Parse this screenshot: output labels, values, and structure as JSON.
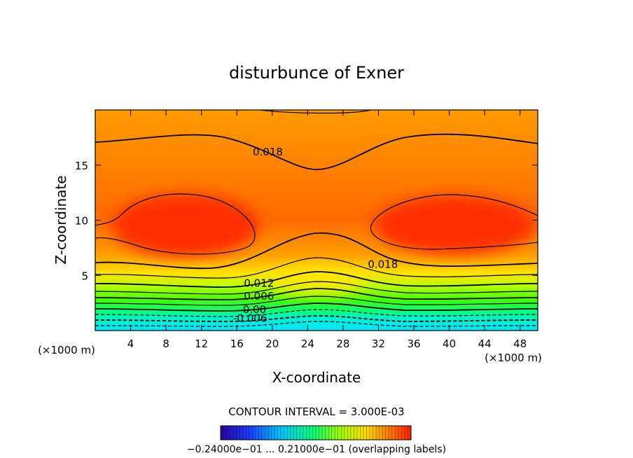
{
  "chart_data": {
    "type": "contour",
    "title": "disturbunce of Exner",
    "xlabel": "X-coordinate",
    "ylabel": "Z-coordinate",
    "x_unit": "(×1000 m)",
    "z_unit": "(×1000 m)",
    "xlim": [
      0,
      50
    ],
    "ylim": [
      0,
      20
    ],
    "x_ticks": [
      "4",
      "8",
      "12",
      "16",
      "20",
      "24",
      "28",
      "32",
      "36",
      "40",
      "44",
      "48"
    ],
    "y_ticks": [
      "5",
      "10",
      "15"
    ],
    "contour_interval_label": "CONTOUR INTERVAL = 3.000E-03",
    "contour_labels": [
      {
        "text": "0.018",
        "x": 19.5,
        "z": 16.2
      },
      {
        "text": "0.018",
        "x": 32.5,
        "z": 6.0
      },
      {
        "text": "0.012",
        "x": 18.5,
        "z": 4.3
      },
      {
        "text": "0.006",
        "x": 18.5,
        "z": 3.1
      },
      {
        "text": "0.00",
        "x": 18.0,
        "z": 1.9
      },
      {
        "text": "-0.006",
        "x": 17.5,
        "z": 1.1
      }
    ],
    "colorbar": {
      "min": -0.024,
      "max": 0.021,
      "tick_labels_text": "−0.24000e−01 ... 0.21000e−01 (overlapping labels)"
    },
    "grid": false,
    "legend": "none"
  }
}
